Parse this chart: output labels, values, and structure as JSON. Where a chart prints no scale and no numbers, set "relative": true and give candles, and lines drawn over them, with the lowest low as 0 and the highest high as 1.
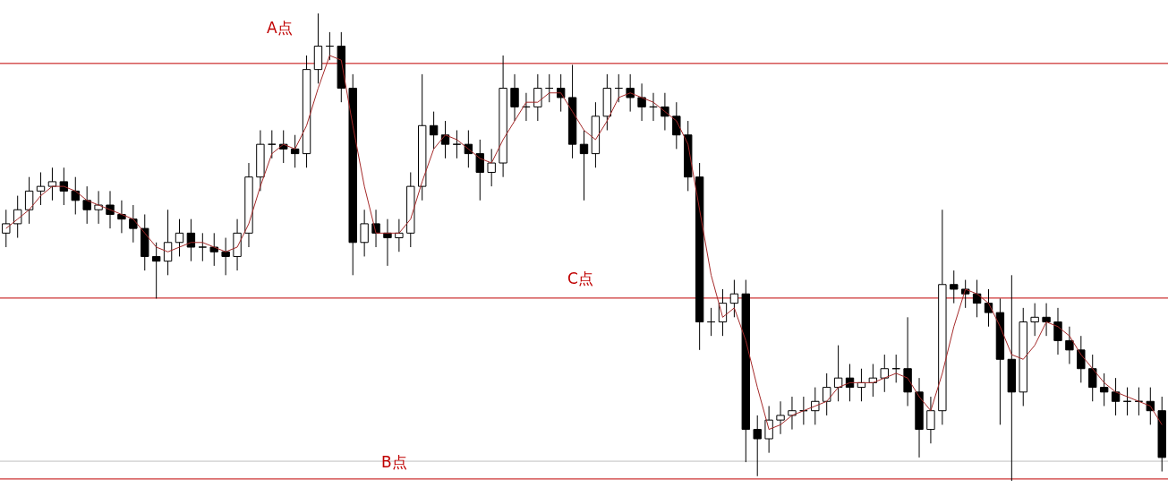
{
  "chart_data": {
    "type": "candlestick",
    "relative": true,
    "tick_labels": false,
    "color": "#000000",
    "categories": [
      null,
      null,
      null,
      null,
      null,
      null,
      null,
      null,
      null,
      null,
      null,
      null,
      null,
      null,
      null,
      null,
      null,
      null,
      null,
      null,
      null,
      null,
      null,
      null,
      null,
      null,
      null,
      null,
      null,
      null,
      null,
      null,
      null,
      null,
      null,
      null,
      null,
      null,
      null,
      null,
      null,
      null,
      null,
      null,
      null,
      null,
      null,
      null,
      null,
      null,
      null,
      null,
      null,
      null,
      null,
      null,
      null,
      null,
      null,
      null,
      null,
      null,
      null,
      null,
      null,
      null,
      null,
      null,
      null,
      null,
      null,
      null,
      null,
      null,
      null,
      null,
      null,
      null,
      null,
      null,
      null,
      null,
      null,
      null,
      null,
      null,
      null,
      null,
      null,
      null,
      null,
      null,
      null,
      null,
      null,
      null,
      null,
      null,
      null,
      null,
      null
    ],
    "ohlc": [
      [
        0.53,
        0.58,
        0.5,
        0.55
      ],
      [
        0.55,
        0.61,
        0.52,
        0.58
      ],
      [
        0.58,
        0.65,
        0.55,
        0.62
      ],
      [
        0.62,
        0.66,
        0.59,
        0.63
      ],
      [
        0.63,
        0.67,
        0.6,
        0.64
      ],
      [
        0.64,
        0.67,
        0.59,
        0.62
      ],
      [
        0.62,
        0.65,
        0.57,
        0.6
      ],
      [
        0.6,
        0.63,
        0.55,
        0.58
      ],
      [
        0.58,
        0.62,
        0.55,
        0.59
      ],
      [
        0.59,
        0.62,
        0.54,
        0.57
      ],
      [
        0.57,
        0.6,
        0.53,
        0.56
      ],
      [
        0.56,
        0.59,
        0.51,
        0.54
      ],
      [
        0.54,
        0.57,
        0.45,
        0.48
      ],
      [
        0.48,
        0.51,
        0.39,
        0.47
      ],
      [
        0.47,
        0.58,
        0.44,
        0.51
      ],
      [
        0.51,
        0.56,
        0.48,
        0.53
      ],
      [
        0.53,
        0.56,
        0.47,
        0.5
      ],
      [
        0.5,
        0.53,
        0.47,
        0.5
      ],
      [
        0.5,
        0.53,
        0.46,
        0.49
      ],
      [
        0.49,
        0.52,
        0.44,
        0.48
      ],
      [
        0.48,
        0.56,
        0.45,
        0.53
      ],
      [
        0.53,
        0.68,
        0.5,
        0.65
      ],
      [
        0.65,
        0.75,
        0.62,
        0.72
      ],
      [
        0.72,
        0.75,
        0.69,
        0.72
      ],
      [
        0.72,
        0.75,
        0.68,
        0.71
      ],
      [
        0.71,
        0.74,
        0.67,
        0.7
      ],
      [
        0.7,
        0.91,
        0.67,
        0.88
      ],
      [
        0.88,
        1.0,
        0.85,
        0.93
      ],
      [
        0.93,
        0.96,
        0.9,
        0.93
      ],
      [
        0.93,
        0.96,
        0.81,
        0.84
      ],
      [
        0.84,
        0.87,
        0.44,
        0.51
      ],
      [
        0.51,
        0.58,
        0.48,
        0.55
      ],
      [
        0.55,
        0.58,
        0.5,
        0.53
      ],
      [
        0.53,
        0.56,
        0.46,
        0.52
      ],
      [
        0.52,
        0.56,
        0.49,
        0.53
      ],
      [
        0.53,
        0.66,
        0.5,
        0.63
      ],
      [
        0.63,
        0.87,
        0.6,
        0.76
      ],
      [
        0.76,
        0.79,
        0.71,
        0.74
      ],
      [
        0.74,
        0.77,
        0.69,
        0.72
      ],
      [
        0.72,
        0.75,
        0.69,
        0.72
      ],
      [
        0.72,
        0.75,
        0.67,
        0.7
      ],
      [
        0.7,
        0.73,
        0.6,
        0.66
      ],
      [
        0.66,
        0.71,
        0.63,
        0.68
      ],
      [
        0.68,
        0.91,
        0.65,
        0.84
      ],
      [
        0.84,
        0.87,
        0.77,
        0.8
      ],
      [
        0.8,
        0.83,
        0.77,
        0.8
      ],
      [
        0.8,
        0.87,
        0.77,
        0.84
      ],
      [
        0.84,
        0.87,
        0.81,
        0.84
      ],
      [
        0.84,
        0.87,
        0.79,
        0.82
      ],
      [
        0.82,
        0.89,
        0.69,
        0.72
      ],
      [
        0.72,
        0.75,
        0.6,
        0.7
      ],
      [
        0.7,
        0.81,
        0.67,
        0.78
      ],
      [
        0.78,
        0.87,
        0.75,
        0.84
      ],
      [
        0.84,
        0.87,
        0.81,
        0.84
      ],
      [
        0.84,
        0.87,
        0.79,
        0.82
      ],
      [
        0.82,
        0.85,
        0.77,
        0.8
      ],
      [
        0.8,
        0.83,
        0.77,
        0.8
      ],
      [
        0.8,
        0.83,
        0.75,
        0.78
      ],
      [
        0.78,
        0.81,
        0.71,
        0.74
      ],
      [
        0.74,
        0.77,
        0.62,
        0.65
      ],
      [
        0.65,
        0.68,
        0.28,
        0.34
      ],
      [
        0.34,
        0.37,
        0.31,
        0.34
      ],
      [
        0.34,
        0.41,
        0.31,
        0.38
      ],
      [
        0.38,
        0.43,
        0.35,
        0.4
      ],
      [
        0.4,
        0.43,
        0.04,
        0.11
      ],
      [
        0.11,
        0.14,
        0.01,
        0.09
      ],
      [
        0.09,
        0.16,
        0.06,
        0.13
      ],
      [
        0.13,
        0.17,
        0.1,
        0.14
      ],
      [
        0.14,
        0.18,
        0.11,
        0.15
      ],
      [
        0.15,
        0.18,
        0.12,
        0.15
      ],
      [
        0.15,
        0.2,
        0.12,
        0.17
      ],
      [
        0.17,
        0.23,
        0.14,
        0.2
      ],
      [
        0.2,
        0.29,
        0.17,
        0.22
      ],
      [
        0.22,
        0.25,
        0.17,
        0.2
      ],
      [
        0.2,
        0.24,
        0.17,
        0.21
      ],
      [
        0.21,
        0.25,
        0.18,
        0.22
      ],
      [
        0.22,
        0.27,
        0.19,
        0.24
      ],
      [
        0.24,
        0.27,
        0.21,
        0.24
      ],
      [
        0.24,
        0.35,
        0.16,
        0.19
      ],
      [
        0.19,
        0.22,
        0.05,
        0.11
      ],
      [
        0.11,
        0.18,
        0.08,
        0.15
      ],
      [
        0.15,
        0.58,
        0.12,
        0.42
      ],
      [
        0.42,
        0.45,
        0.38,
        0.41
      ],
      [
        0.41,
        0.43,
        0.37,
        0.4
      ],
      [
        0.4,
        0.43,
        0.35,
        0.38
      ],
      [
        0.38,
        0.41,
        0.33,
        0.36
      ],
      [
        0.36,
        0.39,
        0.12,
        0.26
      ],
      [
        0.26,
        0.44,
        0.0,
        0.19
      ],
      [
        0.19,
        0.37,
        0.16,
        0.34
      ],
      [
        0.34,
        0.38,
        0.31,
        0.35
      ],
      [
        0.35,
        0.38,
        0.31,
        0.34
      ],
      [
        0.34,
        0.37,
        0.27,
        0.3
      ],
      [
        0.3,
        0.33,
        0.25,
        0.28
      ],
      [
        0.28,
        0.31,
        0.21,
        0.24
      ],
      [
        0.24,
        0.27,
        0.17,
        0.2
      ],
      [
        0.2,
        0.23,
        0.16,
        0.19
      ],
      [
        0.19,
        0.22,
        0.14,
        0.17
      ],
      [
        0.17,
        0.2,
        0.14,
        0.17
      ],
      [
        0.17,
        0.2,
        0.14,
        0.17
      ],
      [
        0.17,
        0.2,
        0.12,
        0.15
      ],
      [
        0.15,
        0.18,
        0.02,
        0.05
      ]
    ],
    "series": [
      {
        "type": "line",
        "color": "#a52a2a",
        "values": [
          0.54,
          0.56,
          0.58,
          0.61,
          0.63,
          0.63,
          0.62,
          0.6,
          0.59,
          0.58,
          0.57,
          0.56,
          0.53,
          0.5,
          0.49,
          0.5,
          0.51,
          0.51,
          0.5,
          0.49,
          0.5,
          0.55,
          0.63,
          0.7,
          0.72,
          0.71,
          0.76,
          0.84,
          0.91,
          0.9,
          0.76,
          0.63,
          0.53,
          0.53,
          0.53,
          0.56,
          0.64,
          0.71,
          0.74,
          0.73,
          0.71,
          0.69,
          0.68,
          0.73,
          0.77,
          0.81,
          0.81,
          0.83,
          0.83,
          0.79,
          0.75,
          0.73,
          0.77,
          0.82,
          0.83,
          0.82,
          0.81,
          0.79,
          0.77,
          0.72,
          0.58,
          0.44,
          0.35,
          0.37,
          0.3,
          0.2,
          0.11,
          0.12,
          0.14,
          0.15,
          0.16,
          0.17,
          0.2,
          0.21,
          0.21,
          0.21,
          0.22,
          0.23,
          0.22,
          0.18,
          0.15,
          0.23,
          0.33,
          0.41,
          0.4,
          0.38,
          0.33,
          0.27,
          0.26,
          0.29,
          0.34,
          0.33,
          0.31,
          0.27,
          0.24,
          0.21,
          0.19,
          0.18,
          0.17,
          0.16,
          0.12
        ]
      }
    ],
    "ref_lines": [
      {
        "axis": "y",
        "value": 0.893,
        "color": "#c00000"
      },
      {
        "axis": "y",
        "value": 0.391,
        "color": "#c00000"
      },
      {
        "axis": "y",
        "value": 0.042,
        "color": "#c0c0c0"
      },
      {
        "axis": "y",
        "value": 0.004,
        "color": "#c00000"
      }
    ],
    "annotations": [
      "A点",
      "C点",
      "B点"
    ]
  }
}
